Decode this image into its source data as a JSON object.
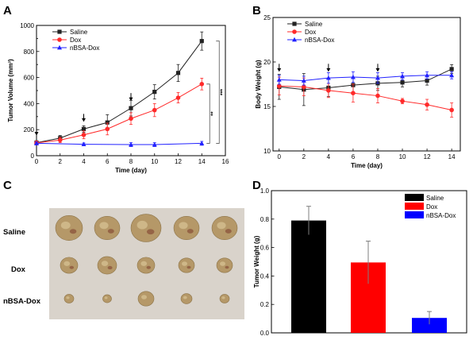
{
  "panels": {
    "A": "A",
    "B": "B",
    "C": "C",
    "D": "D"
  },
  "photo": {
    "row_labels": [
      "Saline",
      "Dox",
      "nBSA-Dox"
    ],
    "background_color": "#d9d3cb",
    "tumor_color": "#b59868",
    "tumor_dark": "#7a3a2a"
  },
  "chart_data": [
    {
      "id": "A",
      "type": "line",
      "xlabel": "Time (day)",
      "ylabel": "Tumor Volume (mm³)",
      "xlim": [
        0,
        16
      ],
      "ylim": [
        0,
        1000
      ],
      "xticks": [
        0,
        2,
        4,
        6,
        8,
        10,
        12,
        14,
        16
      ],
      "yticks": [
        0,
        100,
        200,
        300,
        400,
        500,
        600,
        700,
        800,
        900,
        1000
      ],
      "ytick_labels": [
        0,
        200,
        400,
        600,
        800,
        1000
      ],
      "arrows_at": [
        0,
        4,
        8
      ],
      "legend_position": "top-left",
      "series": [
        {
          "name": "Saline",
          "color": "#222222",
          "marker": "square",
          "x": [
            0,
            2,
            4,
            6,
            8,
            10,
            12,
            14
          ],
          "y": [
            100,
            135,
            205,
            255,
            365,
            490,
            635,
            880
          ],
          "err": [
            15,
            20,
            25,
            60,
            60,
            55,
            65,
            70
          ]
        },
        {
          "name": "Dox",
          "color": "#ff2a2a",
          "marker": "circle",
          "x": [
            0,
            2,
            4,
            6,
            8,
            10,
            12,
            14
          ],
          "y": [
            98,
            120,
            160,
            205,
            285,
            350,
            445,
            550
          ],
          "err": [
            15,
            20,
            30,
            45,
            45,
            50,
            40,
            45
          ]
        },
        {
          "name": "nBSA-Dox",
          "color": "#2222ff",
          "marker": "triangle",
          "x": [
            0,
            4,
            8,
            10,
            14
          ],
          "y": [
            95,
            88,
            85,
            85,
            95
          ],
          "err": [
            10,
            10,
            15,
            15,
            15
          ]
        }
      ],
      "significance": [
        {
          "label": "**",
          "between": [
            "Dox",
            "nBSA-Dox"
          ],
          "at_x": 14
        },
        {
          "label": "***",
          "between": [
            "Saline",
            "nBSA-Dox"
          ],
          "at_x": 14
        }
      ]
    },
    {
      "id": "B",
      "type": "line",
      "xlabel": "Time (day)",
      "ylabel": "Body Weight (g)",
      "xlim": [
        -0.5,
        14.7
      ],
      "ylim": [
        10,
        25
      ],
      "xticks": [
        0,
        2,
        4,
        6,
        8,
        10,
        12,
        14
      ],
      "yticks": [
        10,
        15,
        20,
        25
      ],
      "arrows_at": [
        0,
        4,
        8
      ],
      "legend_position": "top-left",
      "series": [
        {
          "name": "Saline",
          "color": "#222222",
          "marker": "square",
          "x": [
            0,
            2,
            4,
            6,
            8,
            10,
            12,
            14
          ],
          "y": [
            17.2,
            16.9,
            17.1,
            17.4,
            17.6,
            17.7,
            17.9,
            19.2
          ],
          "err": [
            1.4,
            1.8,
            1.0,
            0.8,
            0.8,
            0.5,
            0.5,
            0.5
          ]
        },
        {
          "name": "Dox",
          "color": "#ff2a2a",
          "marker": "circle",
          "x": [
            0,
            2,
            4,
            6,
            8,
            10,
            12,
            14
          ],
          "y": [
            17.3,
            17.2,
            16.8,
            16.5,
            16.2,
            15.6,
            15.2,
            14.6
          ],
          "err": [
            1.0,
            1.0,
            0.8,
            1.0,
            0.8,
            0.3,
            0.6,
            0.8
          ]
        },
        {
          "name": "nBSA-Dox",
          "color": "#2222ff",
          "marker": "triangle",
          "x": [
            0,
            2,
            4,
            6,
            8,
            10,
            12,
            14
          ],
          "y": [
            18.0,
            17.9,
            18.2,
            18.3,
            18.2,
            18.4,
            18.5,
            18.5
          ],
          "err": [
            0.5,
            0.5,
            0.6,
            0.6,
            0.6,
            0.4,
            0.4,
            0.4
          ]
        }
      ]
    },
    {
      "id": "D",
      "type": "bar",
      "ylabel": "Tumor Weight (g)",
      "ylim": [
        0,
        1.0
      ],
      "yticks": [
        0.0,
        0.2,
        0.4,
        0.6,
        0.8,
        1.0
      ],
      "categories": [
        "Saline",
        "Dox",
        "nBSA-Dox"
      ],
      "values": [
        0.79,
        0.495,
        0.105
      ],
      "err": [
        0.1,
        0.15,
        0.045
      ],
      "colors": [
        "#000000",
        "#ff0000",
        "#0000ff"
      ],
      "legend_position": "top-right"
    }
  ]
}
